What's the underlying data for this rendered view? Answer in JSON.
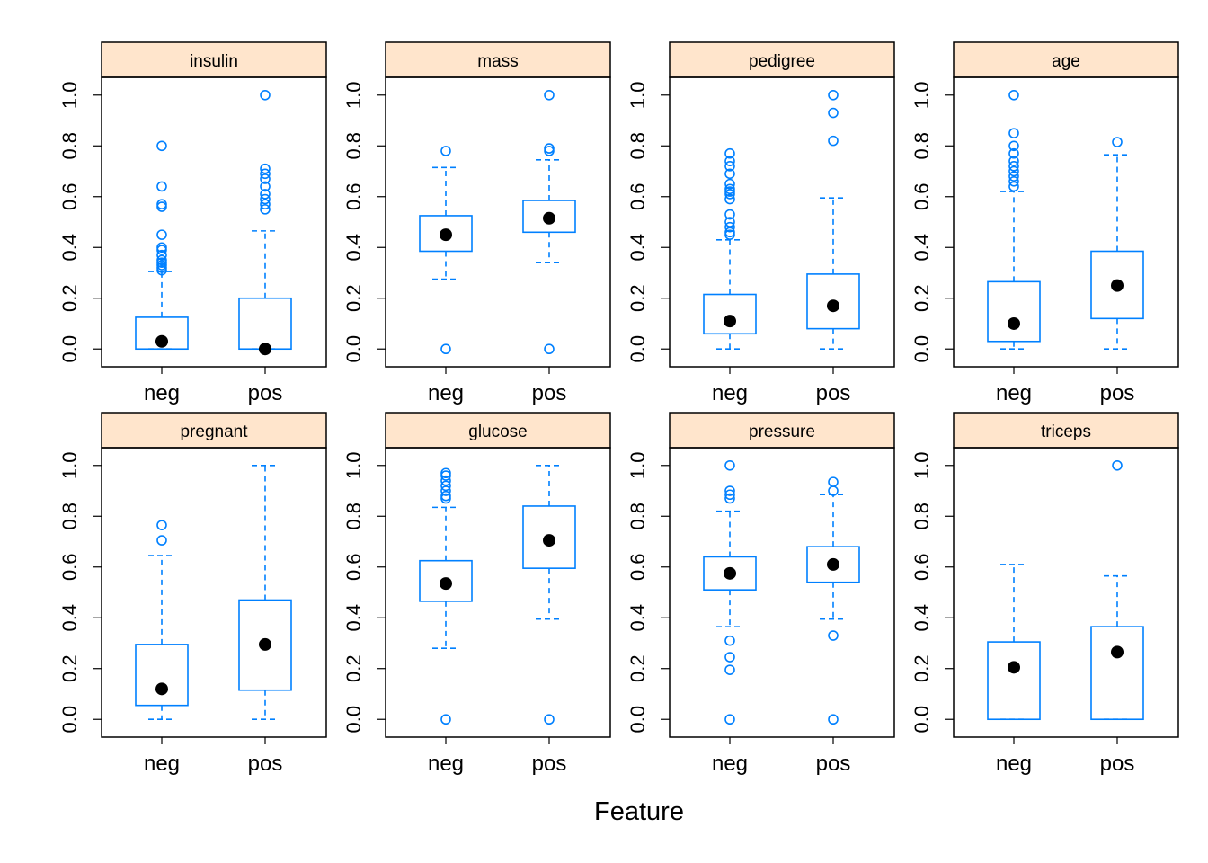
{
  "chart_data": {
    "type": "boxplot",
    "xlabel": "Feature",
    "categories": [
      "neg",
      "pos"
    ],
    "y_ticks": [
      "0.0",
      "0.2",
      "0.4",
      "0.6",
      "0.8",
      "1.0"
    ],
    "ylim": [
      -0.07,
      1.07
    ],
    "colors": {
      "box": "#0080ff",
      "median_dot": "#000000",
      "strip_fill": "#ffe5cc",
      "frame": "#000000"
    },
    "panels": [
      {
        "name": "insulin",
        "groups": [
          {
            "category": "neg",
            "whisker_low": 0.0,
            "q1": 0.0,
            "median": 0.03,
            "q3": 0.125,
            "whisker_high": 0.305,
            "outliers": [
              0.31,
              0.32,
              0.33,
              0.34,
              0.35,
              0.37,
              0.39,
              0.4,
              0.45,
              0.56,
              0.57,
              0.64,
              0.8
            ]
          },
          {
            "category": "pos",
            "whisker_low": 0.0,
            "q1": 0.0,
            "median": 0.0,
            "q3": 0.2,
            "whisker_high": 0.465,
            "outliers": [
              0.55,
              0.57,
              0.59,
              0.61,
              0.64,
              0.67,
              0.69,
              0.71,
              1.0
            ]
          }
        ]
      },
      {
        "name": "mass",
        "groups": [
          {
            "category": "neg",
            "whisker_low": 0.275,
            "q1": 0.385,
            "median": 0.45,
            "q3": 0.525,
            "whisker_high": 0.715,
            "outliers": [
              0.0,
              0.78
            ]
          },
          {
            "category": "pos",
            "whisker_low": 0.34,
            "q1": 0.46,
            "median": 0.515,
            "q3": 0.585,
            "whisker_high": 0.745,
            "outliers": [
              0.0,
              0.78,
              0.79,
              1.0
            ]
          }
        ]
      },
      {
        "name": "pedigree",
        "groups": [
          {
            "category": "neg",
            "whisker_low": 0.0,
            "q1": 0.06,
            "median": 0.11,
            "q3": 0.215,
            "whisker_high": 0.43,
            "outliers": [
              0.45,
              0.46,
              0.48,
              0.5,
              0.53,
              0.59,
              0.61,
              0.62,
              0.63,
              0.65,
              0.69,
              0.72,
              0.74,
              0.77
            ]
          },
          {
            "category": "pos",
            "whisker_low": 0.0,
            "q1": 0.08,
            "median": 0.17,
            "q3": 0.295,
            "whisker_high": 0.595,
            "outliers": [
              0.82,
              0.93,
              1.0
            ]
          }
        ]
      },
      {
        "name": "age",
        "groups": [
          {
            "category": "neg",
            "whisker_low": 0.0,
            "q1": 0.03,
            "median": 0.1,
            "q3": 0.265,
            "whisker_high": 0.62,
            "outliers": [
              0.64,
              0.66,
              0.68,
              0.7,
              0.72,
              0.74,
              0.77,
              0.8,
              0.85,
              1.0
            ]
          },
          {
            "category": "pos",
            "whisker_low": 0.0,
            "q1": 0.12,
            "median": 0.25,
            "q3": 0.385,
            "whisker_high": 0.765,
            "outliers": [
              0.815
            ]
          }
        ]
      },
      {
        "name": "pregnant",
        "groups": [
          {
            "category": "neg",
            "whisker_low": 0.0,
            "q1": 0.055,
            "median": 0.12,
            "q3": 0.295,
            "whisker_high": 0.645,
            "outliers": [
              0.705,
              0.765
            ]
          },
          {
            "category": "pos",
            "whisker_low": 0.0,
            "q1": 0.115,
            "median": 0.295,
            "q3": 0.47,
            "whisker_high": 1.0,
            "outliers": []
          }
        ]
      },
      {
        "name": "glucose",
        "groups": [
          {
            "category": "neg",
            "whisker_low": 0.28,
            "q1": 0.465,
            "median": 0.535,
            "q3": 0.625,
            "whisker_high": 0.835,
            "outliers": [
              0.0,
              0.87,
              0.88,
              0.9,
              0.92,
              0.94,
              0.96,
              0.97
            ]
          },
          {
            "category": "pos",
            "whisker_low": 0.395,
            "q1": 0.595,
            "median": 0.705,
            "q3": 0.84,
            "whisker_high": 1.0,
            "outliers": [
              0.0
            ]
          }
        ]
      },
      {
        "name": "pressure",
        "groups": [
          {
            "category": "neg",
            "whisker_low": 0.365,
            "q1": 0.51,
            "median": 0.575,
            "q3": 0.64,
            "whisker_high": 0.82,
            "outliers": [
              0.0,
              0.195,
              0.245,
              0.31,
              0.87,
              0.885,
              0.9,
              1.0
            ]
          },
          {
            "category": "pos",
            "whisker_low": 0.395,
            "q1": 0.54,
            "median": 0.61,
            "q3": 0.68,
            "whisker_high": 0.885,
            "outliers": [
              0.0,
              0.33,
              0.9,
              0.935
            ]
          }
        ]
      },
      {
        "name": "triceps",
        "groups": [
          {
            "category": "neg",
            "whisker_low": 0.0,
            "q1": 0.0,
            "median": 0.205,
            "q3": 0.305,
            "whisker_high": 0.61,
            "outliers": []
          },
          {
            "category": "pos",
            "whisker_low": 0.0,
            "q1": 0.0,
            "median": 0.265,
            "q3": 0.365,
            "whisker_high": 0.565,
            "outliers": [
              1.0
            ]
          }
        ]
      }
    ]
  }
}
